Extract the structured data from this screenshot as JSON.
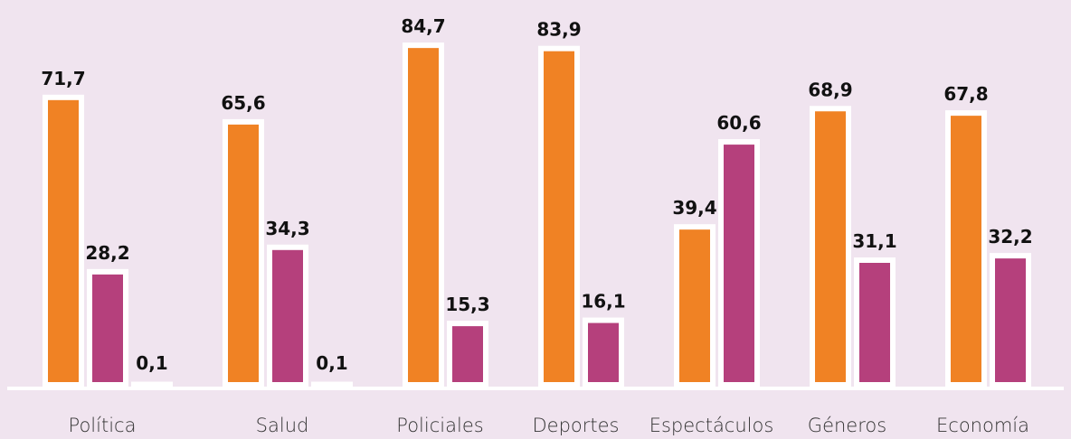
{
  "chart_data": {
    "type": "bar",
    "categories": [
      "Política",
      "Salud",
      "Policiales",
      "Deportes",
      "Espectáculos",
      "Géneros",
      "Economía"
    ],
    "series": [
      {
        "color": "#f08224",
        "values": [
          71.7,
          65.6,
          84.7,
          83.9,
          39.4,
          68.9,
          67.8
        ],
        "value_labels": [
          "71,7",
          "65,6",
          "84,7",
          "83,9",
          "39,4",
          "68,9",
          "67,8"
        ]
      },
      {
        "color": "#b5407c",
        "values": [
          28.2,
          34.3,
          15.3,
          16.1,
          60.6,
          31.1,
          32.2
        ],
        "value_labels": [
          "28,2",
          "34,3",
          "15,3",
          "16,1",
          "60,6",
          "31,1",
          "32,2"
        ]
      },
      {
        "color": "#7b4a9a",
        "values": [
          0.1,
          0.1,
          null,
          null,
          null,
          null,
          null
        ],
        "value_labels": [
          "0,1",
          "0,1",
          null,
          null,
          null,
          null,
          null
        ]
      }
    ],
    "ylim": [
      0,
      96
    ]
  }
}
